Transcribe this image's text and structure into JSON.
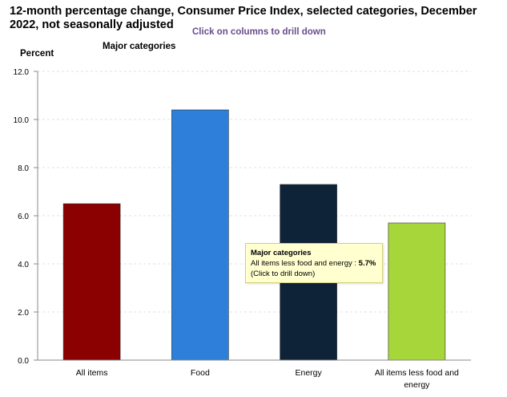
{
  "title": "12-month percentage change, Consumer Price Index, selected categories, December 2022, not seasonally adjusted",
  "drill_hint": "Click on columns to drill down",
  "legend_label": "Major categories",
  "chart_data": {
    "type": "bar",
    "title": "12-month percentage change, Consumer Price Index, selected categories, December 2022, not seasonally adjusted",
    "ylabel": "Percent",
    "xlabel": "",
    "ylim": [
      0,
      12
    ],
    "yticks": [
      "0.0",
      "2.0",
      "4.0",
      "6.0",
      "8.0",
      "10.0",
      "12.0"
    ],
    "grid": true,
    "categories": [
      "All items",
      "Food",
      "Energy",
      "All items less food and energy"
    ],
    "series": [
      {
        "name": "Major categories",
        "values": [
          6.5,
          10.4,
          7.3,
          5.7
        ],
        "colors": [
          "#8b0000",
          "#2e7fd9",
          "#0e2238",
          "#a6d63a"
        ]
      }
    ]
  },
  "tooltip": {
    "title": "Major categories",
    "category": "All items less food and energy",
    "value": "5.7%",
    "note": "(Click to drill down)"
  }
}
